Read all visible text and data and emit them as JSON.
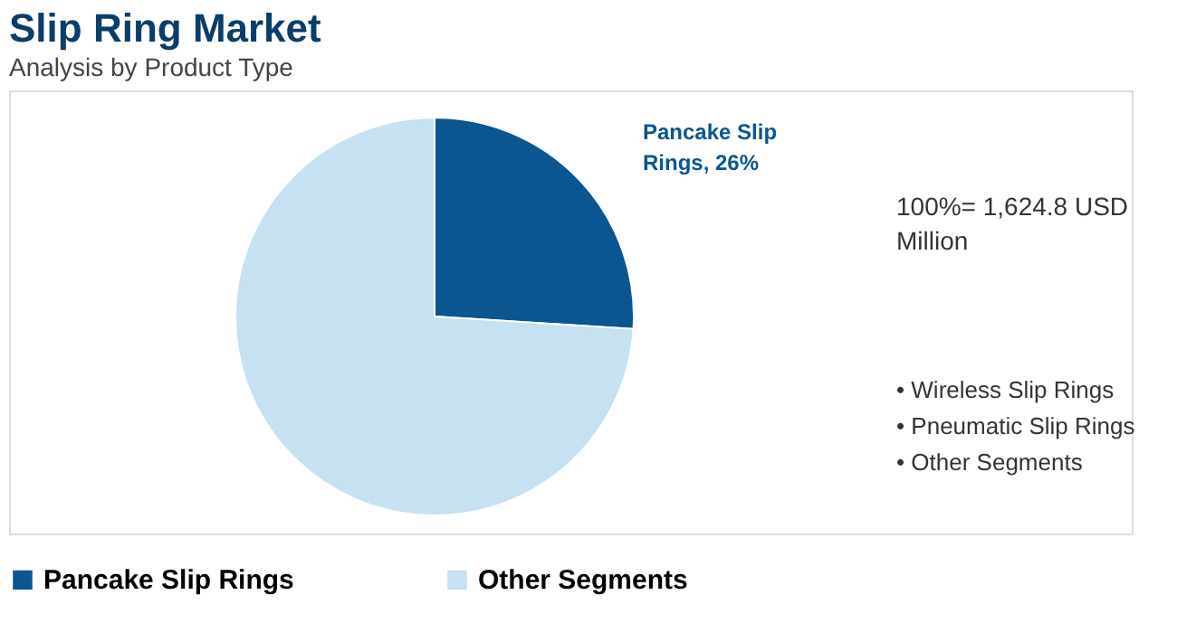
{
  "chart_data": {
    "type": "pie",
    "title": "Slip Ring Market",
    "subtitle": "Analysis by Product Type",
    "categories": [
      "Pancake Slip Rings",
      "Other Segments"
    ],
    "values": [
      26,
      74
    ],
    "colors": [
      "#0b5591",
      "#c5e1f2"
    ],
    "legend": "bottom",
    "annotations": [
      "Pancake Slip Rings, 26%",
      "100%= 1,624.8 USD Million",
      "• Wireless Slip Rings",
      "• Pneumatic Slip Rings",
      "• Other Segments"
    ]
  }
}
